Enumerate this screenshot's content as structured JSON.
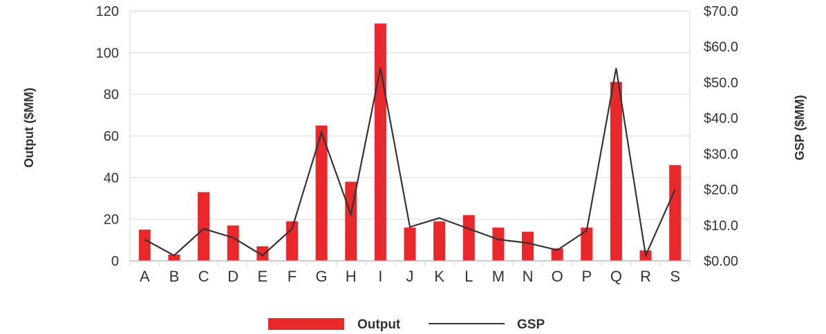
{
  "chart_data": {
    "type": "bar",
    "categories": [
      "A",
      "B",
      "C",
      "D",
      "E",
      "F",
      "G",
      "H",
      "I",
      "J",
      "K",
      "L",
      "M",
      "N",
      "O",
      "P",
      "Q",
      "R",
      "S"
    ],
    "series": [
      {
        "name": "Output",
        "type": "bar",
        "axis": "left",
        "color": "#e8282b",
        "values": [
          15,
          3,
          33,
          17,
          7,
          19,
          65,
          38,
          114,
          16,
          19,
          22,
          16,
          14,
          6,
          16,
          86,
          5,
          46
        ]
      },
      {
        "name": "GSP",
        "type": "line",
        "axis": "right",
        "color": "#333333",
        "values": [
          6,
          1.5,
          9,
          6.5,
          1.5,
          9,
          36,
          13,
          54,
          9.5,
          12,
          9,
          6,
          5,
          3,
          8.5,
          54,
          1.5,
          20
        ]
      }
    ],
    "y_left": {
      "label": "Output ($MM)",
      "ylim": [
        0,
        120
      ],
      "ticks": [
        0,
        20,
        40,
        60,
        80,
        100,
        120
      ],
      "tick_labels": [
        "0",
        "20",
        "40",
        "60",
        "80",
        "100",
        "120"
      ]
    },
    "y_right": {
      "label": "GSP ($MM)",
      "ylim": [
        0,
        70
      ],
      "ticks": [
        0,
        10,
        20,
        30,
        40,
        50,
        60,
        70
      ],
      "tick_labels": [
        "$0.00",
        "$10.0",
        "$20.0",
        "$30.0",
        "$40.0",
        "$50.0",
        "$60.0",
        "$70.0"
      ]
    },
    "grid": true,
    "legend": {
      "position": "bottom",
      "items": [
        {
          "name": "Output",
          "marker": "bar"
        },
        {
          "name": "GSP",
          "marker": "line"
        }
      ]
    },
    "colors": {
      "grid": "#dddddd",
      "text": "#333333",
      "axis": "#bbbbbb"
    }
  }
}
